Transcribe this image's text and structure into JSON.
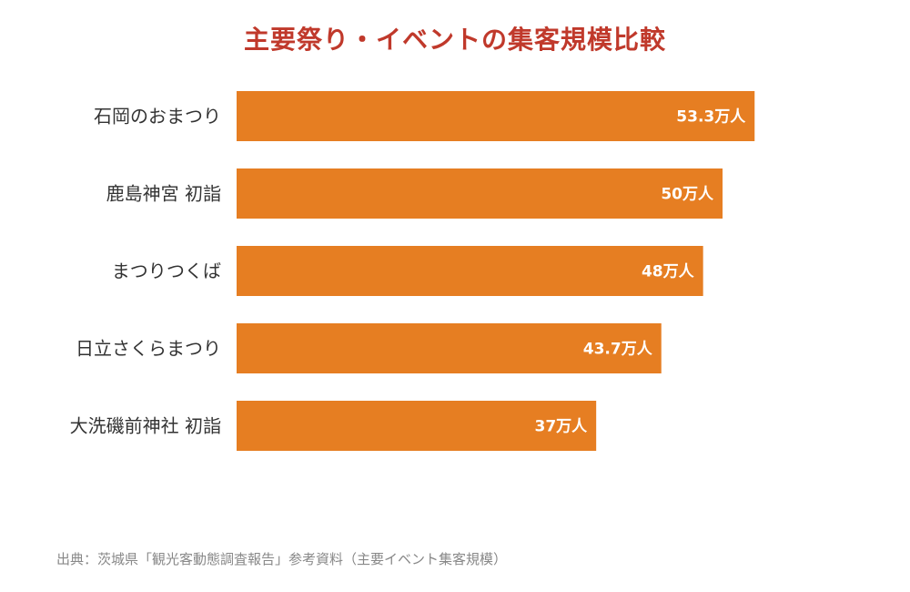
{
  "chart_data": {
    "type": "bar",
    "orientation": "horizontal",
    "title": "主要祭り・イベントの集客規模比較",
    "categories": [
      "石岡のおまつり",
      "鹿島神宮 初詣",
      "まつりつくば",
      "日立さくらまつり",
      "大洗磯前神社 初詣"
    ],
    "values": [
      53.3,
      50,
      48,
      43.7,
      37
    ],
    "value_labels": [
      "53.3万人",
      "50万人",
      "48万人",
      "43.7万人",
      "37万人"
    ],
    "unit": "万人",
    "xlabel": "",
    "ylabel": "",
    "grid": false,
    "legend": false,
    "bar_color": "#e67e22",
    "title_color": "#c0392b"
  },
  "source_note": "出典：茨城県「観光客動態調査報告」参考資料（主要イベント集客規模）"
}
